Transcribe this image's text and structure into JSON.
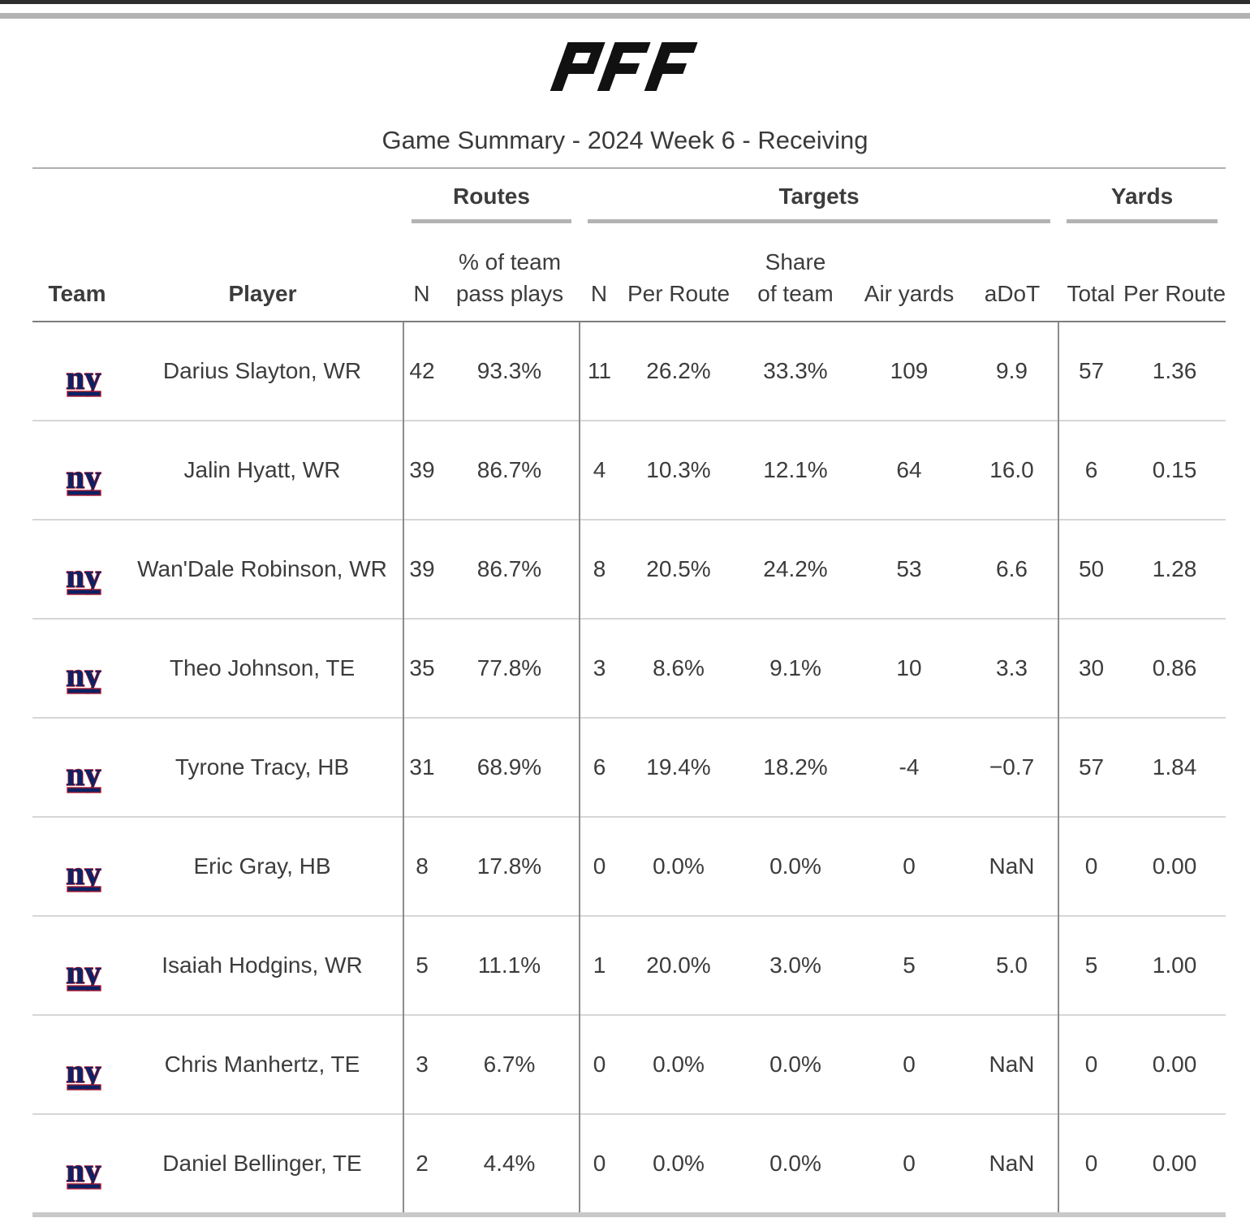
{
  "page": {
    "brand": "PFF",
    "title": "Game Summary - 2024 Week 6 - Receiving"
  },
  "colors": {
    "logo_black": "#111111",
    "giants_navy": "#0b2265",
    "giants_red": "#a71930",
    "text": "#3c3c3c"
  },
  "table": {
    "groups": [
      {
        "label": ""
      },
      {
        "label": "Routes"
      },
      {
        "label": "Targets"
      },
      {
        "label": "Yards"
      }
    ],
    "columns": [
      "Team",
      "Player",
      "N",
      "% of team\npass plays",
      "N",
      "Per Route",
      "Share\nof team",
      "Air yards",
      "aDoT",
      "Total",
      "Per Route"
    ],
    "rows": [
      {
        "team": "New York Giants",
        "player": "Darius Slayton, WR",
        "values": [
          "42",
          "93.3%",
          "11",
          "26.2%",
          "33.3%",
          "109",
          "9.9",
          "57",
          "1.36"
        ]
      },
      {
        "team": "New York Giants",
        "player": "Jalin Hyatt, WR",
        "values": [
          "39",
          "86.7%",
          "4",
          "10.3%",
          "12.1%",
          "64",
          "16.0",
          "6",
          "0.15"
        ]
      },
      {
        "team": "New York Giants",
        "player": "Wan'Dale Robinson, WR",
        "values": [
          "39",
          "86.7%",
          "8",
          "20.5%",
          "24.2%",
          "53",
          "6.6",
          "50",
          "1.28"
        ]
      },
      {
        "team": "New York Giants",
        "player": "Theo Johnson, TE",
        "values": [
          "35",
          "77.8%",
          "3",
          "8.6%",
          "9.1%",
          "10",
          "3.3",
          "30",
          "0.86"
        ]
      },
      {
        "team": "New York Giants",
        "player": "Tyrone Tracy, HB",
        "values": [
          "31",
          "68.9%",
          "6",
          "19.4%",
          "18.2%",
          "-4",
          "−0.7",
          "57",
          "1.84"
        ]
      },
      {
        "team": "New York Giants",
        "player": "Eric Gray, HB",
        "values": [
          "8",
          "17.8%",
          "0",
          "0.0%",
          "0.0%",
          "0",
          "NaN",
          "0",
          "0.00"
        ]
      },
      {
        "team": "New York Giants",
        "player": "Isaiah Hodgins, WR",
        "values": [
          "5",
          "11.1%",
          "1",
          "20.0%",
          "3.0%",
          "5",
          "5.0",
          "5",
          "1.00"
        ]
      },
      {
        "team": "New York Giants",
        "player": "Chris Manhertz, TE",
        "values": [
          "3",
          "6.7%",
          "0",
          "0.0%",
          "0.0%",
          "0",
          "NaN",
          "0",
          "0.00"
        ]
      },
      {
        "team": "New York Giants",
        "player": "Daniel Bellinger, TE",
        "values": [
          "2",
          "4.4%",
          "0",
          "0.0%",
          "0.0%",
          "0",
          "NaN",
          "0",
          "0.00"
        ]
      }
    ]
  }
}
